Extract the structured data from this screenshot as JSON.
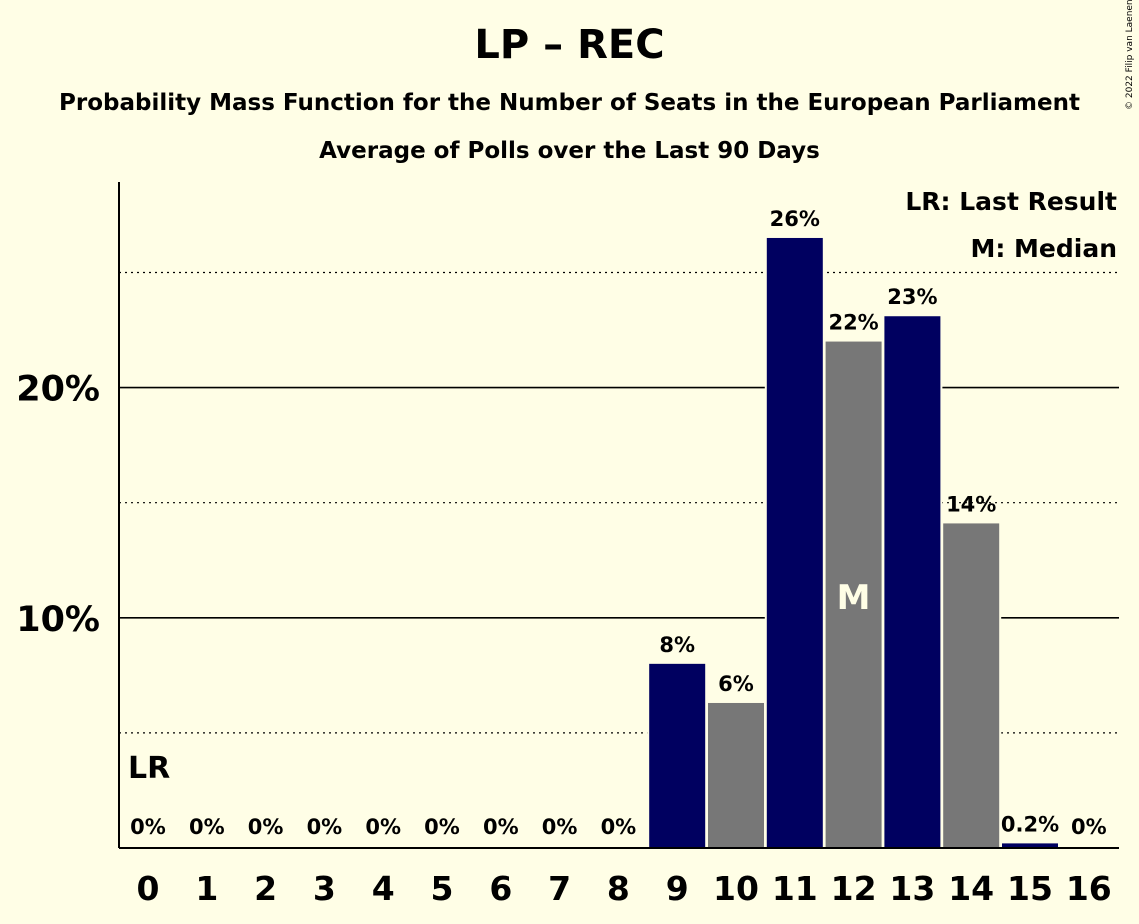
{
  "chart_data": {
    "type": "bar",
    "title": "LP – REC",
    "subtitle": "Probability Mass Function for the Number of Seats in the European Parliament",
    "subtitle2": "Average of Polls over the Last 90 Days",
    "copyright": "© 2022 Filip van Laenen",
    "categories": [
      "0",
      "1",
      "2",
      "3",
      "4",
      "5",
      "6",
      "7",
      "8",
      "9",
      "10",
      "11",
      "12",
      "13",
      "14",
      "15",
      "16"
    ],
    "values": [
      0,
      0,
      0,
      0,
      0,
      0,
      0,
      0,
      0,
      8.0,
      6.3,
      26.5,
      22.0,
      23.1,
      14.1,
      0.2,
      0
    ],
    "value_labels": [
      "0%",
      "0%",
      "0%",
      "0%",
      "0%",
      "0%",
      "0%",
      "0%",
      "0%",
      "8%",
      "6%",
      "26%",
      "22%",
      "23%",
      "14%",
      "0.2%",
      "0%"
    ],
    "ylim": [
      0,
      28.8
    ],
    "y_ticks": [
      {
        "value": 10,
        "label": "10%"
      },
      {
        "value": 20,
        "label": "20%"
      }
    ],
    "minor_gridlines": [
      5,
      15,
      25
    ],
    "median_seat": 12,
    "median_marker": "M",
    "last_result_seat": 0,
    "last_result_marker": "LR",
    "legend": [
      "LR: Last Result",
      "M: Median"
    ],
    "legend_position": "top-right",
    "colors": {
      "background": "#FFFEE6",
      "bar_primary": "#000060",
      "bar_secondary": "#777777",
      "median_text": "#FFFEE6"
    }
  }
}
